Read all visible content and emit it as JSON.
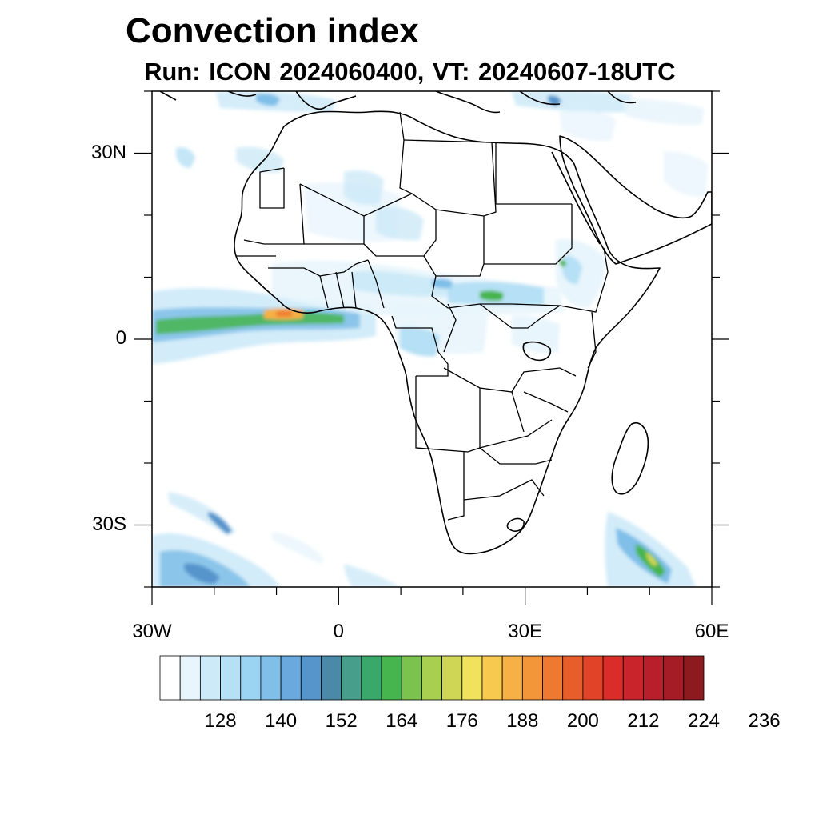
{
  "map": {
    "title": "Convection index",
    "subtitle": "Run: ICON 2024060400,  VT: 20240607-18UTC",
    "lat_labels": [
      "30N",
      "0",
      "30S"
    ],
    "lat_values": [
      30,
      0,
      -30
    ],
    "lon_labels": [
      "30W",
      "0",
      "30E",
      "60E"
    ],
    "lon_values": [
      -30,
      0,
      30,
      60
    ],
    "extent": {
      "lon": [
        -30,
        60
      ],
      "lat": [
        -40,
        40
      ]
    }
  },
  "colorbar": {
    "labels": [
      "128",
      "140",
      "152",
      "164",
      "176",
      "188",
      "200",
      "212",
      "224",
      "236"
    ],
    "colors": [
      "#ffffff",
      "#e8f5fc",
      "#cdeaf8",
      "#b5e0f5",
      "#9bd3f2",
      "#7fbfe8",
      "#6aa9dd",
      "#5694cc",
      "#4a8aa8",
      "#479e8a",
      "#3aa86a",
      "#47b54e",
      "#7cc24f",
      "#a9cf50",
      "#cfd655",
      "#f0e25c",
      "#f8c94f",
      "#f6b045",
      "#f3963a",
      "#ee7a31",
      "#e85e2b",
      "#e14329",
      "#da2d2a",
      "#c9242c",
      "#b81f2b",
      "#a51b26",
      "#8c1a1f"
    ]
  }
}
